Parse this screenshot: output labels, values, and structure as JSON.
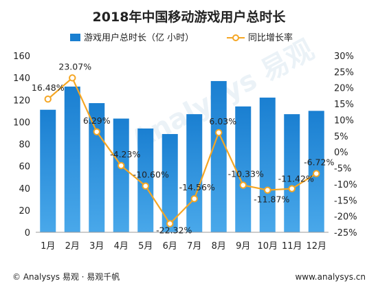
{
  "chart_data": {
    "type": "bar",
    "title": "2018年中国移动游戏用户总时长",
    "categories": [
      "1月",
      "2月",
      "3月",
      "4月",
      "5月",
      "6月",
      "7月",
      "8月",
      "9月",
      "10月",
      "11月",
      "12月"
    ],
    "series": [
      {
        "name": "游戏用户总时长（亿 小时）",
        "type": "bar",
        "axis": "left",
        "values": [
          111,
          132,
          117,
          103,
          94,
          89,
          107,
          137,
          114,
          122,
          107,
          110
        ]
      },
      {
        "name": "同比增长率",
        "type": "line",
        "axis": "right",
        "values": [
          16.48,
          23.07,
          6.29,
          -4.23,
          -10.6,
          -22.32,
          -14.56,
          6.03,
          -10.33,
          -11.87,
          -11.42,
          -6.72
        ],
        "labels": [
          "16.48%",
          "23.07%",
          "6.29%",
          "-4.23%",
          "-10.60%",
          "-22.32%",
          "-14.56%",
          "6.03%",
          "-10.33%",
          "-11.87%",
          "-11.42%",
          "-6.72%"
        ]
      }
    ],
    "y_left": {
      "ylim": [
        0,
        160
      ],
      "ticks": [
        "0",
        "20",
        "40",
        "60",
        "80",
        "100",
        "120",
        "140",
        "160"
      ]
    },
    "y_right": {
      "ylim": [
        -25,
        30
      ],
      "ticks": [
        "30%",
        "25%",
        "20%",
        "15%",
        "10%",
        "5%",
        "0%",
        "-5%",
        "-10%",
        "-15%",
        "-20%",
        "-25%"
      ]
    },
    "grid": false,
    "legend_position": "top"
  },
  "footer": {
    "left": "© Analysys 易观 · 易观千帆",
    "right": "www.analysys.cn"
  },
  "watermark": "Analysys 易观",
  "colors": {
    "bar": "#1a7fd1",
    "bar_light": "#4aa6ea",
    "line": "#f5a623",
    "marker_fill": "#ffffff"
  }
}
